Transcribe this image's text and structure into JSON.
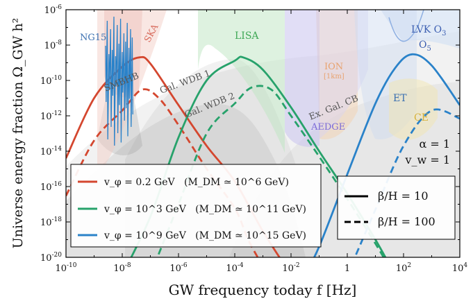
{
  "chart_data": {
    "type": "line",
    "x_scale": "log",
    "y_scale": "log",
    "xlim": [
      1e-10,
      10000
    ],
    "ylim": [
      1e-20,
      1e-06
    ],
    "xlabel": "GW frequency today f [Hz]",
    "ylabel": "Universe energy fraction Ω_GW h²",
    "x_ticks": [
      "10^-10",
      "10^-8",
      "10^-6",
      "10^-4",
      "10^-2",
      "1",
      "10^2",
      "10^4"
    ],
    "y_ticks": [
      "10^-20",
      "10^-18",
      "10^-16",
      "10^-14",
      "10^-12",
      "10^-10",
      "10^-8",
      "10^-6"
    ],
    "grid": false,
    "legend_placement": "bottom-left",
    "params_text": [
      "α = 1",
      "v_w = 1"
    ],
    "style_legend": [
      {
        "label": "β/H = 10",
        "dash": "solid"
      },
      {
        "label": "β/H = 100",
        "dash": "dashed"
      }
    ],
    "series": [
      {
        "name": "v_φ = 0.2 GeV   (M_DM ≃ 10^6 GeV)",
        "color": "#d4472f",
        "beta_over_H": 10,
        "points": [
          [
            1e-10,
            4e-15
          ],
          [
            1e-09,
            1e-11
          ],
          [
            1e-08,
            6e-10
          ],
          [
            4e-08,
            2e-09
          ],
          [
            1e-07,
            9e-10
          ],
          [
            1e-06,
            4e-12
          ],
          [
            1e-05,
            2e-14
          ],
          [
            0.0001,
            2e-16
          ],
          [
            0.001,
            3e-19
          ],
          [
            0.01,
            1e-21
          ]
        ]
      },
      {
        "name": "v_φ = 0.2 GeV   (M_DM ≃ 10^6 GeV)",
        "color": "#d4472f",
        "beta_over_H": 100,
        "points": [
          [
            1e-10,
            3e-17
          ],
          [
            1e-09,
            4e-14
          ],
          [
            1e-08,
            2e-12
          ],
          [
            5e-08,
            3e-11
          ],
          [
            2e-07,
            1e-11
          ],
          [
            1e-06,
            3e-13
          ],
          [
            1e-05,
            1e-15
          ],
          [
            0.0001,
            6e-18
          ],
          [
            0.0003,
            1e-19
          ],
          [
            0.001,
            3e-21
          ]
        ]
      },
      {
        "name": "v_φ = 10^3 GeV   (M_DM ≃ 10^11 GeV)",
        "color": "#27a26b",
        "beta_over_H": 10,
        "points": [
          [
            1e-08,
            1e-21
          ],
          [
            1e-07,
            2e-18
          ],
          [
            1e-06,
            6e-14
          ],
          [
            1e-05,
            1e-10
          ],
          [
            0.0001,
            1.3e-09
          ],
          [
            0.0002,
            2e-09
          ],
          [
            0.001,
            4e-10
          ],
          [
            0.01,
            3e-12
          ],
          [
            0.1,
            1e-14
          ],
          [
            1,
            4e-17
          ],
          [
            10,
            1e-19
          ],
          [
            50,
            1e-21
          ]
        ]
      },
      {
        "name": "v_φ = 10^3 GeV   (M_DM ≃ 10^11 GeV)",
        "color": "#27a26b",
        "beta_over_H": 100,
        "points": [
          [
            1e-07,
            1e-21
          ],
          [
            1e-06,
            1e-17
          ],
          [
            1e-05,
            1e-13
          ],
          [
            0.0001,
            5e-12
          ],
          [
            0.0004,
            4e-11
          ],
          [
            0.002,
            3e-11
          ],
          [
            0.01,
            1e-12
          ],
          [
            0.1,
            5e-15
          ],
          [
            1,
            2e-17
          ],
          [
            10,
            6e-20
          ],
          [
            30,
            3e-21
          ]
        ]
      },
      {
        "name": "v_φ = 10^9 GeV   (M_DM ≃ 10^15 GeV)",
        "color": "#2a82c9",
        "beta_over_H": 10,
        "points": [
          [
            0.03,
            1e-21
          ],
          [
            0.1,
            4e-20
          ],
          [
            1,
            5e-16
          ],
          [
            10,
            5e-12
          ],
          [
            50,
            5e-10
          ],
          [
            200,
            3e-09
          ],
          [
            1000,
            7e-10
          ],
          [
            10000,
            4e-12
          ]
        ]
      },
      {
        "name": "v_φ = 10^9 GeV   (M_DM ≃ 10^15 GeV)",
        "color": "#2a82c9",
        "beta_over_H": 100,
        "points": [
          [
            1,
            1e-21
          ],
          [
            10,
            5e-18
          ],
          [
            100,
            2e-14
          ],
          [
            1000,
            2e-12
          ],
          [
            10000,
            7e-13
          ]
        ]
      }
    ],
    "region_labels": [
      {
        "text": "NG15",
        "color": "#3a6fb0"
      },
      {
        "text": "SKA",
        "color": "#d86b5c"
      },
      {
        "text": "LISA",
        "color": "#3fa856"
      },
      {
        "text": "ION",
        "color": "#e8a26e"
      },
      {
        "text": "[1km]",
        "color": "#e8a26e"
      },
      {
        "text": "AEDGE",
        "color": "#7b6ad8"
      },
      {
        "text": "LVK O",
        "color": "#3a5db0"
      },
      {
        "text": "3",
        "color": "#3a5db0"
      },
      {
        "text": "O",
        "color": "#3a5db0"
      },
      {
        "text": "5",
        "color": "#3a5db0"
      },
      {
        "text": "ET",
        "color": "#3a6fb0"
      },
      {
        "text": "CE",
        "color": "#d4b03a"
      },
      {
        "text": "SMBHB",
        "color": "#555555"
      },
      {
        "text": "Gal. WDB 1",
        "color": "#555555"
      },
      {
        "text": "Gal. WDB 2",
        "color": "#555555"
      },
      {
        "text": "Ex. Gal. CB",
        "color": "#555555"
      }
    ]
  }
}
